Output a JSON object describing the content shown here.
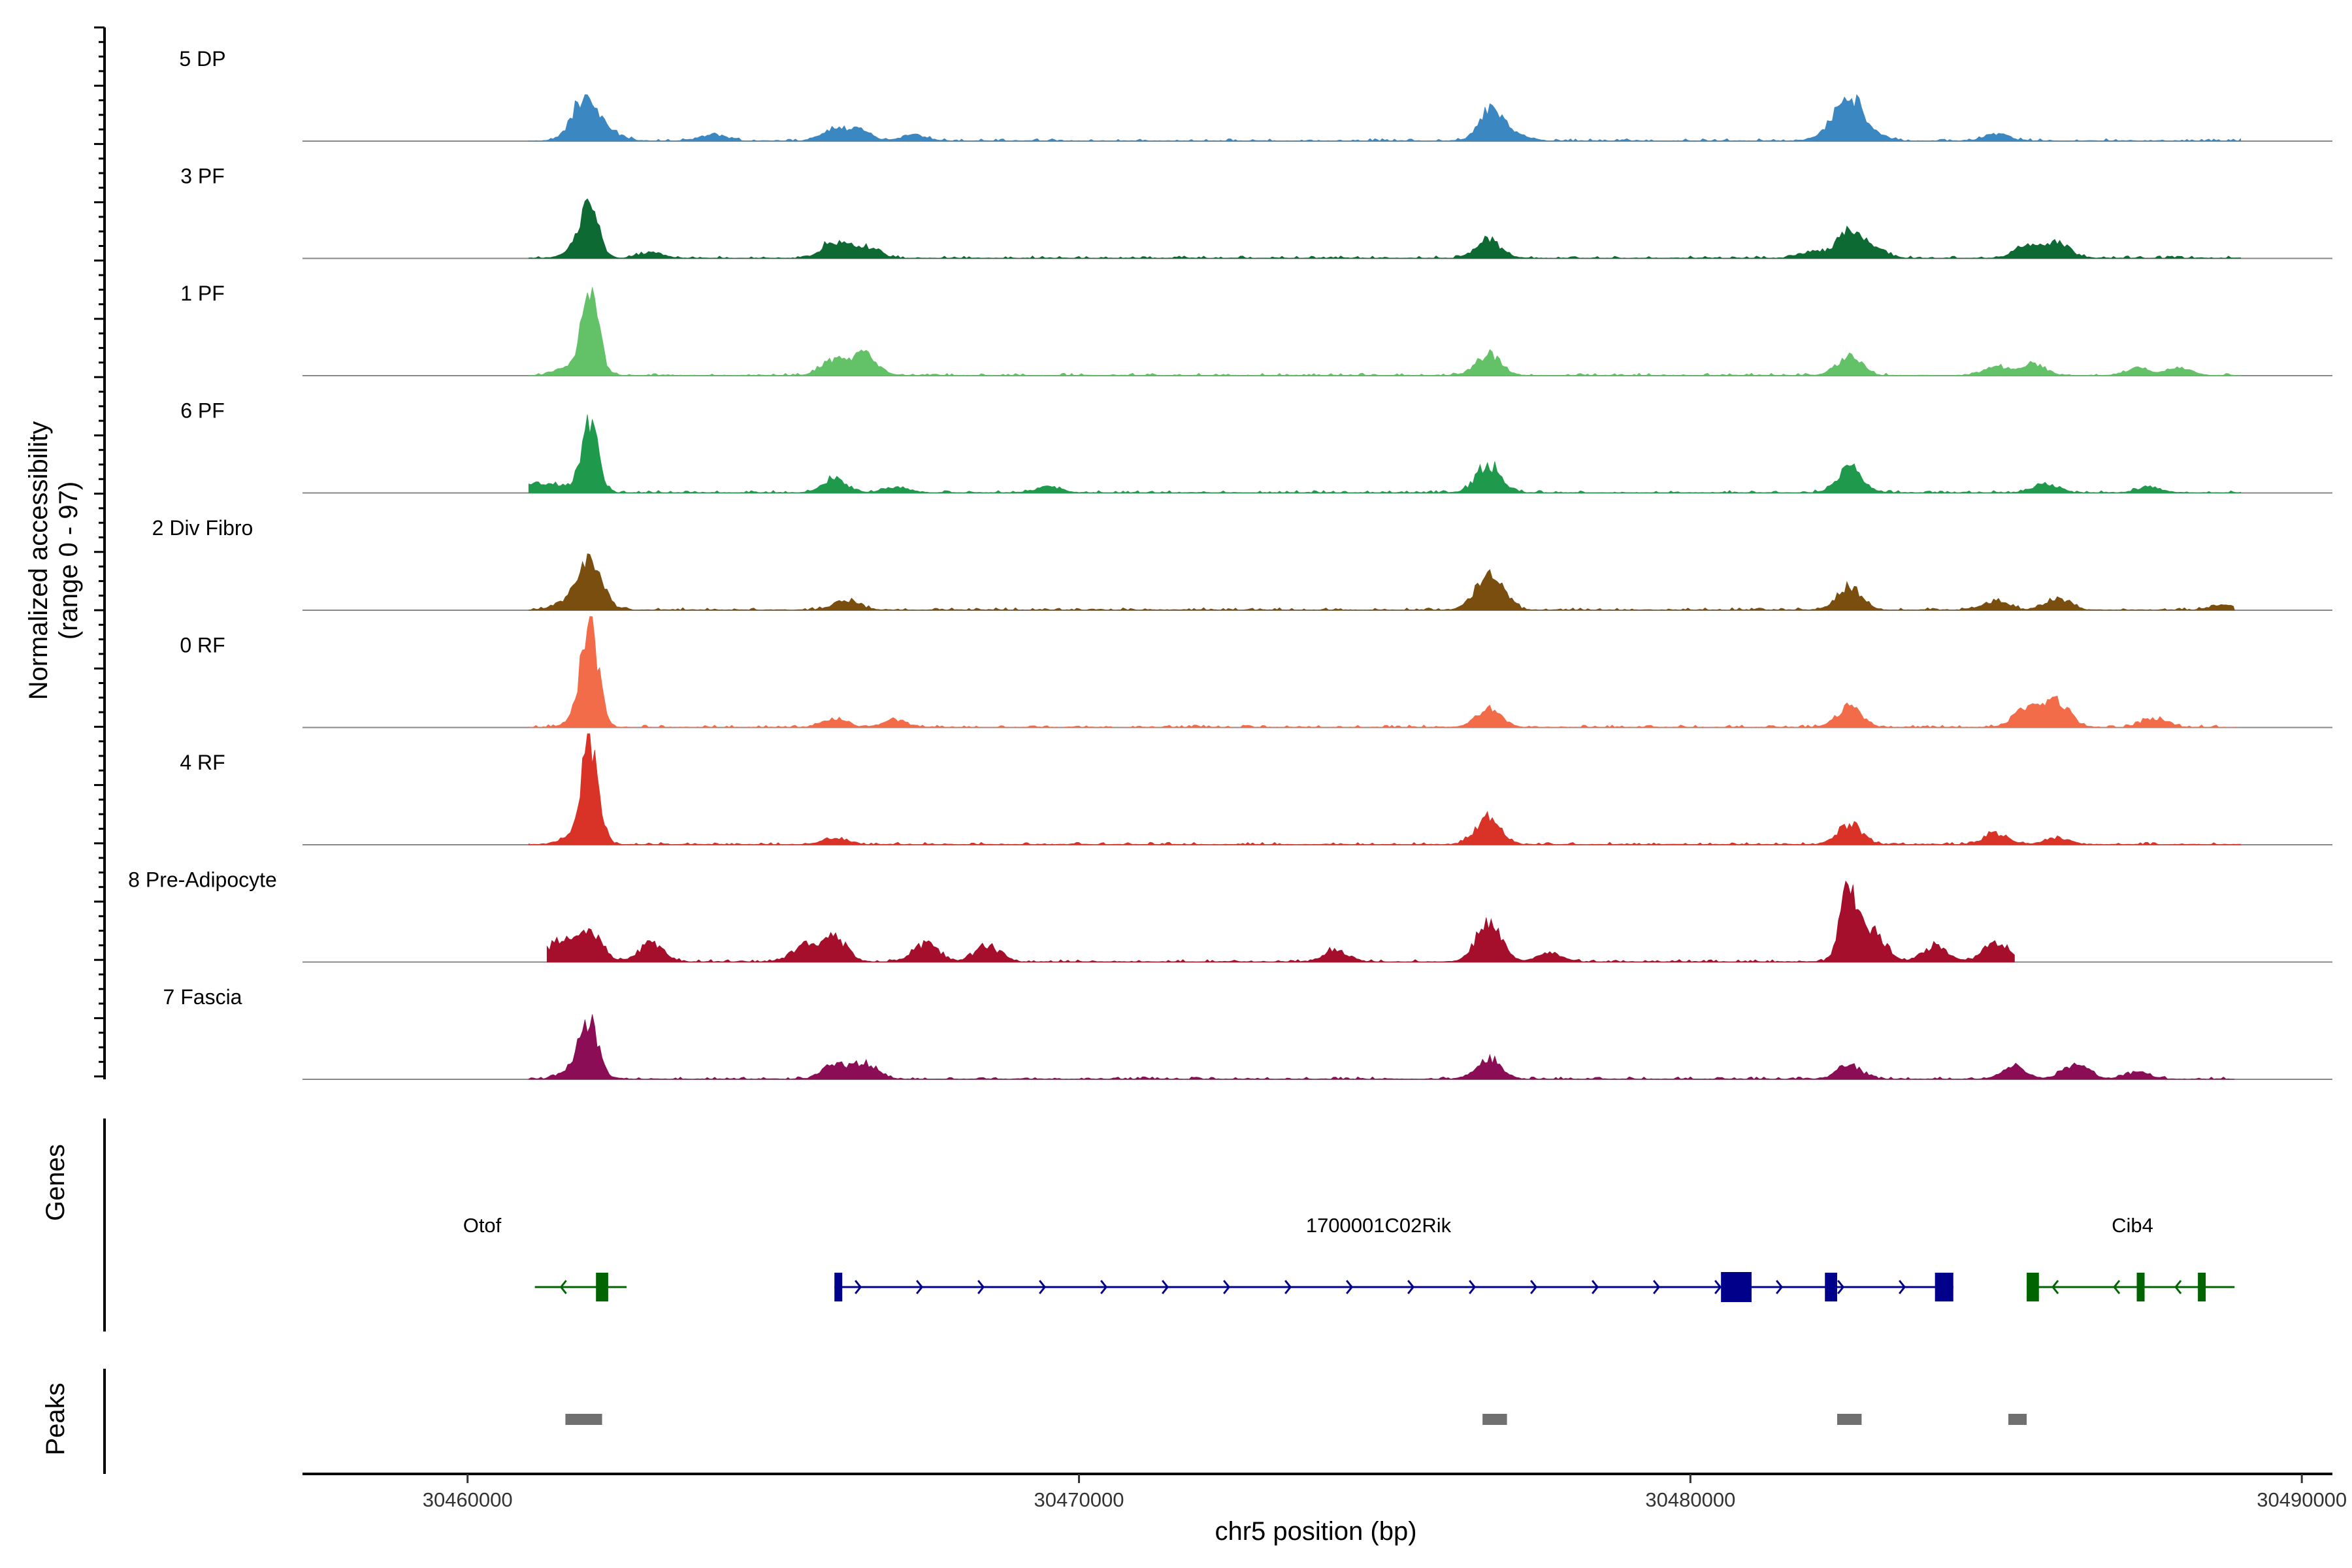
{
  "chart_data": {
    "type": "area",
    "title": "",
    "xlabel": "chr5 position (bp)",
    "ylabel": "Normalized accessibility\n(range 0 - 97)",
    "ylabel_line1": "Normalized accessibility",
    "ylabel_line2": "(range 0 - 97)",
    "y_range": [
      0,
      97
    ],
    "x_range": [
      30457300,
      30490500
    ],
    "x_ticks": [
      30460000,
      30470000,
      30480000,
      30490000
    ],
    "x_tick_labels": [
      "30460000",
      "30470000",
      "30480000",
      "30490000"
    ],
    "tracks": [
      {
        "name": "5 DP",
        "color": "#3b87c2",
        "baseline_start": 30461000,
        "baseline_end": 30489000,
        "peaks": [
          [
            30461900,
            36
          ],
          [
            30462300,
            8
          ],
          [
            30464000,
            6
          ],
          [
            30466000,
            10
          ],
          [
            30466400,
            8
          ],
          [
            30467300,
            5
          ],
          [
            30476750,
            28
          ],
          [
            30477200,
            4
          ],
          [
            30482300,
            8
          ],
          [
            30482600,
            38
          ],
          [
            30483000,
            5
          ],
          [
            30485000,
            6
          ]
        ]
      },
      {
        "name": "3 PF",
        "color": "#0d6a33",
        "baseline_start": 30461000,
        "baseline_end": 30489000,
        "peaks": [
          [
            30461800,
            8
          ],
          [
            30462000,
            45
          ],
          [
            30463000,
            5
          ],
          [
            30466000,
            14
          ],
          [
            30466500,
            10
          ],
          [
            30476700,
            16
          ],
          [
            30482000,
            6
          ],
          [
            30482600,
            24
          ],
          [
            30483000,
            8
          ],
          [
            30485500,
            10
          ],
          [
            30486000,
            14
          ]
        ]
      },
      {
        "name": "1 PF",
        "color": "#63c167",
        "baseline_start": 30461000,
        "baseline_end": 30489000,
        "peaks": [
          [
            30461600,
            6
          ],
          [
            30462000,
            70
          ],
          [
            30466000,
            14
          ],
          [
            30466500,
            18
          ],
          [
            30476700,
            18
          ],
          [
            30482600,
            16
          ],
          [
            30485000,
            8
          ],
          [
            30485600,
            10
          ],
          [
            30487300,
            6
          ],
          [
            30488000,
            6
          ]
        ]
      },
      {
        "name": "6 PF",
        "color": "#1f9a4c",
        "baseline_start": 30461000,
        "baseline_end": 30489000,
        "peaks": [
          [
            30461100,
            7
          ],
          [
            30461500,
            6
          ],
          [
            30462000,
            58
          ],
          [
            30466000,
            12
          ],
          [
            30467000,
            5
          ],
          [
            30469500,
            5
          ],
          [
            30476700,
            24
          ],
          [
            30482600,
            22
          ],
          [
            30485800,
            8
          ],
          [
            30487500,
            5
          ]
        ]
      },
      {
        "name": "2 Div Fibro",
        "color": "#7a4e0f",
        "baseline_start": 30461000,
        "baseline_end": 30488900,
        "peaks": [
          [
            30461600,
            6
          ],
          [
            30462000,
            40
          ],
          [
            30466200,
            9
          ],
          [
            30476600,
            14
          ],
          [
            30476800,
            22
          ],
          [
            30482600,
            20
          ],
          [
            30485000,
            8
          ],
          [
            30486000,
            10
          ],
          [
            30488700,
            4
          ]
        ]
      },
      {
        "name": "0 RF",
        "color": "#f36c4a",
        "baseline_start": 30461000,
        "baseline_end": 30489000,
        "peaks": [
          [
            30461800,
            6
          ],
          [
            30462000,
            86
          ],
          [
            30466000,
            7
          ],
          [
            30467000,
            6
          ],
          [
            30476700,
            16
          ],
          [
            30482600,
            18
          ],
          [
            30485500,
            18
          ],
          [
            30486000,
            22
          ],
          [
            30487600,
            8
          ]
        ]
      },
      {
        "name": "4 RF",
        "color": "#d93226",
        "baseline_start": 30461000,
        "baseline_end": 30489000,
        "peaks": [
          [
            30461700,
            6
          ],
          [
            30462000,
            88
          ],
          [
            30466000,
            5
          ],
          [
            30476700,
            24
          ],
          [
            30482600,
            17
          ],
          [
            30485000,
            10
          ],
          [
            30486000,
            6
          ]
        ]
      },
      {
        "name": "8 Pre-Adipocyte",
        "color": "#a50f2b",
        "baseline_start": 30461300,
        "baseline_end": 30485300,
        "peaks": [
          [
            30461500,
            18
          ],
          [
            30462000,
            24
          ],
          [
            30463000,
            16
          ],
          [
            30465500,
            14
          ],
          [
            30466000,
            20
          ],
          [
            30467500,
            16
          ],
          [
            30468500,
            14
          ],
          [
            30474200,
            10
          ],
          [
            30476700,
            36
          ],
          [
            30477700,
            8
          ],
          [
            30482600,
            68
          ],
          [
            30483000,
            24
          ],
          [
            30484000,
            14
          ],
          [
            30485000,
            18
          ]
        ]
      },
      {
        "name": "7 Fascia",
        "color": "#8a0d56",
        "baseline_start": 30461000,
        "baseline_end": 30488900,
        "peaks": [
          [
            30461800,
            14
          ],
          [
            30462000,
            42
          ],
          [
            30466000,
            12
          ],
          [
            30466500,
            14
          ],
          [
            30476700,
            18
          ],
          [
            30482600,
            12
          ],
          [
            30485300,
            10
          ],
          [
            30486300,
            14
          ],
          [
            30487300,
            6
          ]
        ]
      }
    ],
    "genes": [
      {
        "name": "Otof",
        "strand": "-",
        "start": 30461100,
        "end": 30462600,
        "color": "#006400",
        "exons": [
          [
            30462100,
            30462300
          ]
        ]
      },
      {
        "name": "1700001C02Rik",
        "strand": "+",
        "start": 30466000,
        "end": 30484300,
        "color": "#00008b",
        "exons": [
          [
            30466000,
            30466100
          ],
          [
            30480500,
            30481000
          ],
          [
            30482200,
            30482400
          ],
          [
            30484000,
            30484300
          ]
        ]
      },
      {
        "name": "Cib4",
        "strand": "-",
        "start": 30485500,
        "end": 30488900,
        "color": "#006400",
        "exons": [
          [
            30485500,
            30485700
          ],
          [
            30487300,
            30487400
          ],
          [
            30488300,
            30488400
          ]
        ]
      }
    ],
    "peaks_track": [
      [
        30461600,
        30462200
      ],
      [
        30476600,
        30477000
      ],
      [
        30482400,
        30482800
      ],
      [
        30485200,
        30485500
      ]
    ],
    "panel_labels": {
      "genes": "Genes",
      "peaks": "Peaks"
    }
  }
}
